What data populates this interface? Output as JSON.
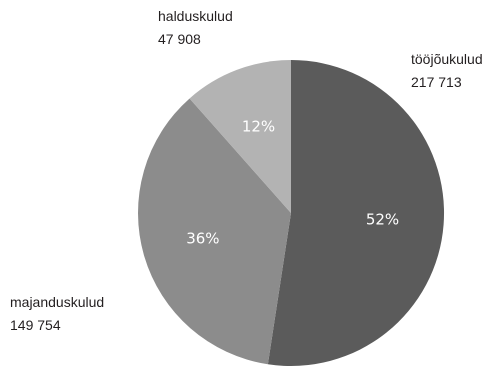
{
  "chart_data": {
    "type": "pie",
    "title": "",
    "slices": [
      {
        "name": "tööjõukulud",
        "value_label": "217 713",
        "value": 217713,
        "percent_label": "52%",
        "color": "#5b5b5b"
      },
      {
        "name": "majanduskulud",
        "value_label": "149 754",
        "value": 149754,
        "percent_label": "36%",
        "color": "#8c8c8c"
      },
      {
        "name": "halduskulud",
        "value_label": "47 908",
        "value": 47908,
        "percent_label": "12%",
        "color": "#b3b3b3"
      }
    ],
    "start_angle_deg": 0,
    "direction": "clockwise",
    "legend": "none"
  }
}
